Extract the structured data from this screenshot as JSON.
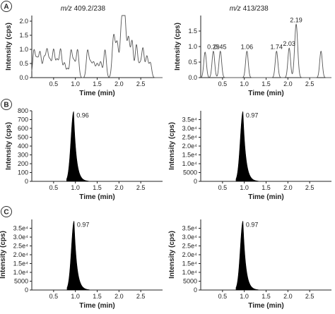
{
  "panel_labels": [
    "A",
    "B",
    "C"
  ],
  "chart_data": [
    {
      "id": "A-left",
      "panel": "A",
      "type": "line",
      "title_prefix": "m/z",
      "title_value": "409.2/238",
      "xlabel": "Time (min)",
      "ylabel": "Intensity (cps)",
      "xlim": [
        0,
        3.0
      ],
      "ylim": [
        0,
        2.2
      ],
      "xticks": [
        0.5,
        1.0,
        1.5,
        2.0,
        2.5
      ],
      "xticklabels": [
        "0.5",
        "1.0",
        "1.5",
        "2.0",
        "2.5"
      ],
      "yticks": [
        0,
        0.5,
        1.0,
        1.5,
        2.0
      ],
      "yticklabels": [
        "0.0",
        "0.5",
        "1.0",
        "1.5",
        "2.0"
      ],
      "peaks": [
        {
          "t": 0.05,
          "h": 0.95,
          "w": 0.03
        },
        {
          "t": 0.12,
          "h": 0.62,
          "w": 0.03
        },
        {
          "t": 0.19,
          "h": 0.88,
          "w": 0.03
        },
        {
          "t": 0.28,
          "h": 0.68,
          "w": 0.03
        },
        {
          "t": 0.35,
          "h": 0.95,
          "w": 0.03
        },
        {
          "t": 0.42,
          "h": 0.58,
          "w": 0.03
        },
        {
          "t": 0.5,
          "h": 0.98,
          "w": 0.03
        },
        {
          "t": 0.58,
          "h": 0.62,
          "w": 0.03
        },
        {
          "t": 0.66,
          "h": 1.0,
          "w": 0.03
        },
        {
          "t": 0.75,
          "h": 0.52,
          "w": 0.03
        },
        {
          "t": 0.82,
          "h": 0.28,
          "w": 0.02
        },
        {
          "t": 0.9,
          "h": 0.95,
          "w": 0.03
        },
        {
          "t": 0.97,
          "h": 0.55,
          "w": 0.03
        },
        {
          "t": 1.05,
          "h": 0.98,
          "w": 0.03
        },
        {
          "t": 1.28,
          "h": 0.95,
          "w": 0.03
        },
        {
          "t": 1.35,
          "h": 0.5,
          "w": 0.03
        },
        {
          "t": 1.42,
          "h": 0.52,
          "w": 0.03
        },
        {
          "t": 1.5,
          "h": 0.48,
          "w": 0.03
        },
        {
          "t": 1.58,
          "h": 0.55,
          "w": 0.03
        },
        {
          "t": 1.68,
          "h": 0.98,
          "w": 0.03
        },
        {
          "t": 1.88,
          "h": 1.5,
          "w": 0.035
        },
        {
          "t": 1.96,
          "h": 1.15,
          "w": 0.03
        },
        {
          "t": 2.06,
          "h": 1.82,
          "w": 0.035
        },
        {
          "t": 2.13,
          "h": 2.15,
          "w": 0.035
        },
        {
          "t": 2.22,
          "h": 1.35,
          "w": 0.03
        },
        {
          "t": 2.3,
          "h": 1.28,
          "w": 0.03
        },
        {
          "t": 2.4,
          "h": 1.15,
          "w": 0.03
        },
        {
          "t": 2.48,
          "h": 0.45,
          "w": 0.03
        },
        {
          "t": 2.55,
          "h": 1.02,
          "w": 0.03
        },
        {
          "t": 2.64,
          "h": 0.75,
          "w": 0.03
        },
        {
          "t": 2.72,
          "h": 0.52,
          "w": 0.03
        }
      ],
      "annotations": []
    },
    {
      "id": "A-right",
      "panel": "A",
      "type": "line",
      "title_prefix": "m/z",
      "title_value": "413/238",
      "xlabel": "Time (min)",
      "ylabel": "Intensity (cps)",
      "xlim": [
        0,
        3.0
      ],
      "ylim": [
        0,
        2.0
      ],
      "xticks": [
        0.5,
        1.0,
        1.5,
        2.0,
        2.5
      ],
      "xticklabels": [
        "0.5",
        "1.0",
        "1.5",
        "2.0",
        "2.5"
      ],
      "yticks": [
        0,
        0.5,
        1.0,
        1.5
      ],
      "yticklabels": [
        "0.0",
        "0.5",
        "1.0",
        "1.5"
      ],
      "peaks": [
        {
          "t": 0.1,
          "h": 0.82,
          "w": 0.03
        },
        {
          "t": 0.29,
          "h": 0.85,
          "w": 0.03
        },
        {
          "t": 0.45,
          "h": 0.85,
          "w": 0.03
        },
        {
          "t": 1.06,
          "h": 0.85,
          "w": 0.03
        },
        {
          "t": 1.74,
          "h": 0.85,
          "w": 0.03
        },
        {
          "t": 2.03,
          "h": 0.95,
          "w": 0.03
        },
        {
          "t": 2.19,
          "h": 1.72,
          "w": 0.035
        },
        {
          "t": 2.76,
          "h": 0.85,
          "w": 0.03
        }
      ],
      "annotations": [
        {
          "x": 0.29,
          "y": 0.85,
          "text": "0.29"
        },
        {
          "x": 0.45,
          "y": 0.85,
          "text": "0.45"
        },
        {
          "x": 1.06,
          "y": 0.85,
          "text": "1.06"
        },
        {
          "x": 1.74,
          "y": 0.85,
          "text": "1.74"
        },
        {
          "x": 2.03,
          "y": 0.95,
          "text": "2.03"
        },
        {
          "x": 2.19,
          "y": 1.72,
          "text": "2.19"
        }
      ]
    },
    {
      "id": "B-left",
      "panel": "B",
      "type": "area",
      "xlabel": "Time (min)",
      "ylabel": "Intensity (cps)",
      "xlim": [
        0,
        3.0
      ],
      "ylim": [
        0,
        800
      ],
      "xticks": [
        0.5,
        1.0,
        1.5,
        2.0,
        2.5
      ],
      "xticklabels": [
        "0.5",
        "1.0",
        "1.5",
        "2.0",
        "2.5"
      ],
      "yticks": [
        0,
        100,
        200,
        300,
        400,
        500,
        600,
        700,
        800
      ],
      "yticklabels": [
        "0",
        "100",
        "200",
        "300",
        "400",
        "500",
        "600",
        "700",
        "800"
      ],
      "peak": {
        "apex": 0.96,
        "height": 790,
        "onset": 0.8,
        "tail_end": 1.3
      },
      "annotations": [
        {
          "x": 0.96,
          "y": 790,
          "text": "0.96"
        }
      ]
    },
    {
      "id": "B-right",
      "panel": "B",
      "type": "area",
      "xlabel": "Time (min)",
      "ylabel": "Intensity (cps)",
      "xlim": [
        0,
        3.0
      ],
      "ylim": [
        0,
        40000
      ],
      "xticks": [
        0.5,
        1.0,
        1.5,
        2.0,
        2.5
      ],
      "xticklabels": [
        "0.5",
        "1.0",
        "1.5",
        "2.0",
        "2.5"
      ],
      "yticks": [
        0,
        5000,
        10000,
        15000,
        20000,
        25000,
        30000,
        35000
      ],
      "yticklabels": [
        "0",
        "5000",
        "1.0e⁴",
        "1.5e⁴",
        "2.0e⁴",
        "2.5e⁴",
        "3.0e⁴",
        "3.5e⁴"
      ],
      "peak": {
        "apex": 0.97,
        "height": 39500,
        "onset": 0.81,
        "tail_end": 1.32
      },
      "annotations": [
        {
          "x": 0.97,
          "y": 39500,
          "text": "0.97"
        }
      ]
    },
    {
      "id": "C-left",
      "panel": "C",
      "type": "area",
      "xlabel": "Time (min)",
      "ylabel": "Intensity (cps)",
      "xlim": [
        0,
        3.0
      ],
      "ylim": [
        0,
        40000
      ],
      "xticks": [
        0.5,
        1.0,
        1.5,
        2.0,
        2.5
      ],
      "xticklabels": [
        "0.5",
        "1.0",
        "1.5",
        "2.0",
        "2.5"
      ],
      "yticks": [
        0,
        5000,
        10000,
        15000,
        20000,
        25000,
        30000,
        35000
      ],
      "yticklabels": [
        "0",
        "5000",
        "1.0e⁴",
        "1.5e⁴",
        "2.0e⁴",
        "2.5e⁴",
        "3.0e⁴",
        "3.5e⁴"
      ],
      "peak": {
        "apex": 0.97,
        "height": 39000,
        "onset": 0.81,
        "tail_end": 1.32
      },
      "annotations": [
        {
          "x": 0.97,
          "y": 39000,
          "text": "0.97"
        }
      ]
    },
    {
      "id": "C-right",
      "panel": "C",
      "type": "area",
      "xlabel": "Time (min)",
      "ylabel": "Intensity (cps)",
      "xlim": [
        0,
        3.0
      ],
      "ylim": [
        0,
        40000
      ],
      "xticks": [
        0.5,
        1.0,
        1.5,
        2.0,
        2.5
      ],
      "xticklabels": [
        "0.5",
        "1.0",
        "1.5",
        "2.0",
        "2.5"
      ],
      "yticks": [
        0,
        5000,
        10000,
        15000,
        20000,
        25000,
        30000,
        35000
      ],
      "yticklabels": [
        "0",
        "5000",
        "1.0e⁴",
        "1.5e⁴",
        "2.0e⁴",
        "2.5e⁴",
        "3.0e⁴",
        "3.5e⁴"
      ],
      "peak": {
        "apex": 0.97,
        "height": 39000,
        "onset": 0.81,
        "tail_end": 1.32
      },
      "annotations": [
        {
          "x": 0.97,
          "y": 39000,
          "text": "0.97"
        }
      ]
    }
  ]
}
